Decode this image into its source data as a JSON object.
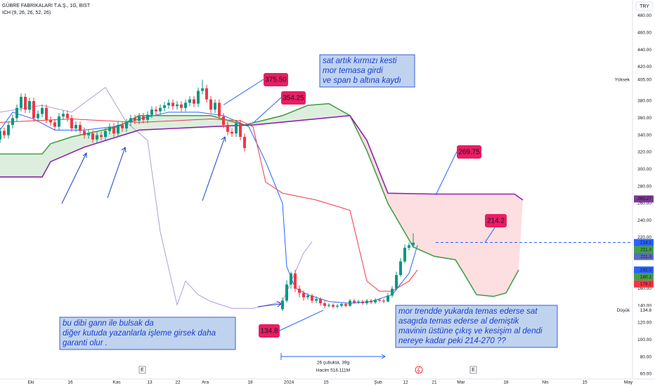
{
  "chart_data": {
    "type": "candlestick",
    "title": "GÜBRE FABRİKALARI T.A.Ş., 1G, BIST",
    "indicator": "ICH (9, 26, 26, 52, 26)",
    "currency": "TRY",
    "up_color": "#089981",
    "down_color": "#f23645",
    "x": [
      0,
      1,
      2,
      3,
      4,
      5,
      6,
      7,
      8,
      9,
      10,
      11,
      12,
      13,
      14,
      15,
      16,
      17,
      18,
      19,
      20,
      21,
      22,
      23,
      24,
      25,
      26,
      27,
      28,
      29,
      30,
      31,
      32,
      33,
      34,
      35,
      36,
      37,
      38,
      39,
      40,
      41,
      42,
      43,
      44,
      45,
      46,
      47,
      48,
      49,
      50,
      51,
      52,
      53,
      54,
      55,
      56,
      57,
      58,
      67,
      68,
      69,
      70,
      71,
      72,
      73,
      74,
      75,
      76,
      77,
      78,
      79,
      80,
      81,
      82,
      83,
      84,
      85,
      86,
      87,
      88,
      89,
      90,
      91,
      92,
      93,
      94,
      95,
      96,
      97,
      98
    ],
    "open": [
      335,
      345,
      340,
      352,
      360,
      372,
      385,
      370,
      380,
      360,
      365,
      372,
      358,
      355,
      350,
      362,
      365,
      360,
      348,
      352,
      345,
      340,
      342,
      335,
      340,
      338,
      345,
      350,
      342,
      352,
      348,
      355,
      360,
      357,
      362,
      358,
      364,
      370,
      368,
      372,
      375,
      378,
      374,
      376,
      372,
      378,
      382,
      377,
      392,
      395,
      382,
      370,
      378,
      362,
      352,
      344,
      342,
      354,
      338,
      136,
      146,
      165,
      178,
      160,
      155,
      150,
      152,
      146,
      148,
      143,
      140,
      141,
      139,
      140,
      142,
      140,
      146,
      144,
      145,
      143,
      146,
      144,
      147,
      146,
      145,
      152,
      160,
      176,
      192,
      208,
      211
    ],
    "high": [
      349,
      349,
      356,
      364,
      376,
      389,
      389,
      384,
      384,
      369,
      376,
      376,
      362,
      359,
      366,
      369,
      369,
      364,
      356,
      356,
      349,
      346,
      346,
      344,
      344,
      349,
      354,
      354,
      356,
      356,
      359,
      364,
      364,
      366,
      366,
      368,
      374,
      374,
      376,
      379,
      382,
      382,
      380,
      380,
      382,
      386,
      386,
      396,
      405,
      399,
      386,
      382,
      382,
      366,
      356,
      348,
      358,
      358,
      342,
      150,
      170,
      180,
      182,
      164,
      158,
      155,
      154,
      151,
      150,
      146,
      143,
      143,
      142,
      144,
      144,
      148,
      148,
      147,
      147,
      148,
      148,
      149,
      149,
      148,
      155,
      163,
      180,
      196,
      212,
      214,
      225
    ],
    "low": [
      331,
      336,
      336,
      348,
      356,
      368,
      366,
      366,
      356,
      356,
      361,
      354,
      351,
      346,
      346,
      358,
      356,
      344,
      344,
      341,
      336,
      336,
      331,
      331,
      334,
      334,
      341,
      338,
      338,
      344,
      344,
      351,
      353,
      353,
      354,
      354,
      360,
      364,
      364,
      368,
      371,
      370,
      370,
      368,
      368,
      374,
      373,
      373,
      388,
      378,
      366,
      366,
      358,
      348,
      340,
      338,
      338,
      334,
      321,
      134,
      144,
      160,
      156,
      150,
      146,
      147,
      143,
      143,
      140,
      137,
      138,
      137,
      137,
      138,
      138,
      139,
      142,
      142,
      141,
      141,
      142,
      142,
      144,
      143,
      144,
      150,
      158,
      174,
      190,
      205,
      208
    ],
    "close": [
      345,
      340,
      352,
      360,
      372,
      385,
      370,
      380,
      360,
      365,
      372,
      358,
      355,
      350,
      362,
      365,
      360,
      348,
      352,
      345,
      340,
      342,
      335,
      340,
      338,
      345,
      350,
      342,
      352,
      348,
      355,
      360,
      357,
      362,
      358,
      364,
      370,
      368,
      372,
      375,
      378,
      374,
      376,
      372,
      378,
      382,
      377,
      392,
      395,
      382,
      370,
      378,
      362,
      352,
      344,
      342,
      354,
      338,
      325,
      146,
      165,
      178,
      160,
      155,
      150,
      152,
      146,
      148,
      143,
      140,
      141,
      139,
      140,
      142,
      140,
      146,
      144,
      145,
      143,
      146,
      144,
      147,
      146,
      145,
      152,
      160,
      176,
      192,
      208,
      211,
      214
    ],
    "lines": [
      {
        "color": "#2962ff",
        "x": [
          0,
          3,
          8,
          13,
          20,
          27,
          33,
          40,
          47,
          53,
          59,
          63,
          67,
          68,
          70,
          73,
          78,
          83,
          88,
          93,
          97,
          99
        ],
        "values": [
          346,
          367,
          359,
          346,
          346,
          350,
          359,
          367,
          367,
          363,
          350,
          309,
          260,
          186,
          161,
          153,
          145,
          143,
          145,
          153,
          178,
          211
        ]
      },
      {
        "color": "#f23645",
        "x": [
          0,
          17,
          33,
          50,
          57,
          60,
          63,
          67,
          75,
          83,
          87,
          90,
          93,
          97,
          99
        ],
        "values": [
          355,
          359,
          355,
          359,
          357,
          350,
          285,
          272,
          264,
          252,
          169,
          157,
          157,
          169,
          182
        ]
      },
      {
        "color": "#b39ddb",
        "x": [
          0,
          10,
          17,
          25,
          30,
          35,
          38,
          42,
          44,
          47,
          50,
          55,
          60,
          67,
          72,
          74
        ],
        "values": [
          367,
          375,
          367,
          396,
          355,
          334,
          227,
          141,
          169,
          153,
          145,
          137,
          137,
          145,
          202,
          215
        ]
      },
      {
        "color": "#43a047",
        "x": [
          0,
          10,
          12,
          17,
          28,
          33,
          50,
          58,
          67,
          73,
          78,
          83,
          87,
          92,
          98,
          103,
          108,
          110,
          113,
          117,
          120,
          123
        ],
        "values": [
          318,
          318,
          330,
          338,
          350,
          363,
          363,
          352,
          363,
          375,
          377,
          363,
          322,
          260,
          209,
          198,
          194,
          178,
          153,
          151,
          155,
          182
        ]
      },
      {
        "color": "#8e24aa",
        "x": [
          0,
          10,
          12,
          20,
          33,
          50,
          60,
          83,
          87,
          92,
          103,
          122,
          124
        ],
        "values": [
          291,
          291,
          309,
          326,
          346,
          350,
          352,
          363,
          334,
          272,
          271,
          271,
          264
        ]
      }
    ],
    "xlim": [
      0,
      150
    ],
    "xticks": [
      {
        "value": 7.33,
        "label": "Eki"
      },
      {
        "value": 16.67,
        "label": "16"
      },
      {
        "value": 27.67,
        "label": "Kas"
      },
      {
        "value": 35.5,
        "label": "13"
      },
      {
        "value": 42.17,
        "label": "22"
      },
      {
        "value": 48.67,
        "label": "Ara"
      },
      {
        "value": 59.33,
        "label": "18"
      },
      {
        "value": 68.5,
        "label": "2024"
      },
      {
        "value": 77.33,
        "label": "15"
      },
      {
        "value": 89.67,
        "label": "Şub"
      },
      {
        "value": 96.17,
        "label": "12"
      },
      {
        "value": 103,
        "label": "21"
      },
      {
        "value": 109.33,
        "label": "Mar"
      },
      {
        "value": 120,
        "label": "18"
      },
      {
        "value": 129.33,
        "label": "Nis"
      },
      {
        "value": 138.67,
        "label": "15"
      },
      {
        "value": 149,
        "label": "May"
      }
    ],
    "ylim": [
      54.2,
      498.5
    ],
    "yticks": [
      {
        "value": 60,
        "label": "60.00"
      },
      {
        "value": 80,
        "label": "80.00"
      },
      {
        "value": 100,
        "label": "100.00"
      },
      {
        "value": 120,
        "label": "120.00"
      },
      {
        "value": 140,
        "label": "140.00"
      },
      {
        "value": 160,
        "label": "160.00"
      },
      {
        "value": 180,
        "label": "180.00"
      },
      {
        "value": 200,
        "label": "200.00"
      },
      {
        "value": 220,
        "label": "220.00"
      },
      {
        "value": 240,
        "label": "240.00"
      },
      {
        "value": 260,
        "label": "260.00"
      },
      {
        "value": 280,
        "label": "280.00"
      },
      {
        "value": 300,
        "label": "300.00"
      },
      {
        "value": 320,
        "label": "320.00"
      },
      {
        "value": 340,
        "label": "340.00"
      },
      {
        "value": 360,
        "label": "360.00"
      },
      {
        "value": 380,
        "label": "380.00"
      },
      {
        "value": 420,
        "label": "420.00"
      },
      {
        "value": 440,
        "label": "440.00"
      },
      {
        "value": 460,
        "label": "460.00"
      },
      {
        "value": 480,
        "label": "480.00"
      }
    ],
    "price_labels": [
      {
        "value": 405,
        "label": "405.00",
        "caption": "Yüksek",
        "color": "#ffffff"
      },
      {
        "value": 265.27,
        "label": "265.27",
        "color": "#7e3794"
      },
      {
        "value": 214.2,
        "label": "214.2",
        "color": "#2962ff"
      },
      {
        "value": 211.3,
        "label": "211.3",
        "color": "#43a047"
      },
      {
        "value": 211.3,
        "label": "211.3",
        "color": "#5c6bc0"
      },
      {
        "value": 182.0,
        "label": "182.0",
        "color": "#2962ff"
      },
      {
        "value": 180.1,
        "label": "180.1",
        "color": "#43a047"
      },
      {
        "value": 178.2,
        "label": "178.2",
        "color": "#f23645"
      },
      {
        "value": 134.8,
        "label": "134.8",
        "caption": "Düşük",
        "color": "#ffffff"
      }
    ],
    "callouts": [
      {
        "value": 375.5,
        "label": "375.50"
      },
      {
        "value": 354.25,
        "label": "354.25"
      },
      {
        "value": 269.75,
        "label": "269.75"
      },
      {
        "value": 214.2,
        "label": "214.2"
      },
      {
        "value": 134.8,
        "label": "134.8"
      }
    ],
    "notes": [
      [
        "sat artık kırmızı kesti",
        "mor temasa girdi",
        "ve span b altına kaydı"
      ],
      [
        "bu dibi gann ile bulsak da",
        "diğer kutuda yazanlarla işleme girsek daha",
        "garanti olur ."
      ],
      [
        "mor trendde yukarda temas ederse sat",
        "asagıda temas ederse al demiştik",
        "mavinin üstüne çıkış ve kesişim al dendi",
        "nereye kadar peki 214-270 ??"
      ]
    ],
    "measure": [
      "26 çubukta, 39g",
      "Hacim 516.111M"
    ],
    "event_icon": "E"
  }
}
